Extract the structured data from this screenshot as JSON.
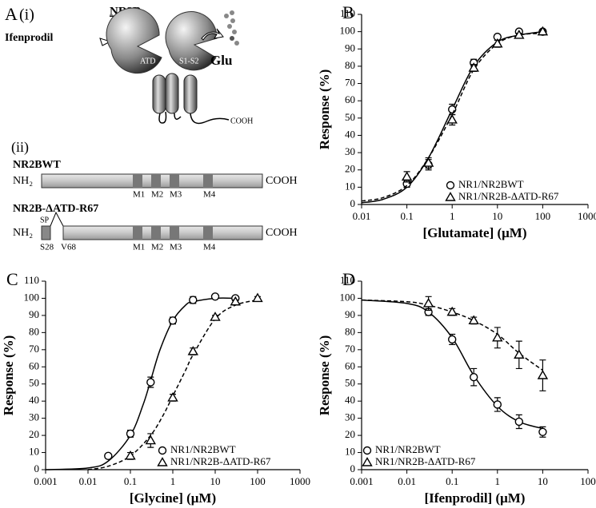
{
  "panel_a": {
    "label": "A",
    "sub_i": "(i)",
    "title": "NR2B",
    "ifenprodil": "Ifenprodil",
    "atd": "ATD",
    "s1s2": "S1-S2",
    "glu": "Glu",
    "cooh_cartoon": "COOH",
    "sub_ii": "(ii)",
    "wt_name": "NR2BWT",
    "nh2": "NH₂",
    "cooh": "COOH",
    "m1": "M1",
    "m2": "M2",
    "m3": "M3",
    "m4": "M4",
    "datd_name": "NR2B-ΔATD-R67",
    "sp": "SP",
    "s28": "S28",
    "v68": "V68"
  },
  "chart_data": [
    {
      "type": "scatter",
      "panel_label": "B",
      "x_label": "[Glutamate] (μM)",
      "y_label": "Response (%)",
      "xscale": "log",
      "xlim": [
        0.01,
        1000
      ],
      "xticks": [
        0.01,
        0.1,
        1,
        10,
        100,
        1000
      ],
      "ylim": [
        0,
        110
      ],
      "yticks": [
        0,
        10,
        20,
        30,
        40,
        50,
        60,
        70,
        80,
        90,
        100,
        110
      ],
      "legend": "lower right",
      "series": [
        {
          "name": "NR1/NR2BWT",
          "color": "#000000",
          "marker": "circle",
          "line": "solid",
          "x": [
            0.1,
            0.3,
            1,
            3,
            10,
            30,
            100
          ],
          "values": [
            12,
            23,
            55,
            82,
            97,
            100,
            100
          ],
          "errors": [
            2,
            3,
            3,
            2,
            1,
            1,
            1
          ],
          "fit": {
            "x": [
              0.01,
              0.03,
              0.1,
              0.3,
              1,
              3,
              10,
              30,
              100
            ],
            "values": [
              1,
              3,
              10,
              27,
              55,
              80,
              94,
              98,
              100
            ]
          }
        },
        {
          "name": "NR1/NR2B-ΔATD-R67",
          "color": "#000000",
          "marker": "triangle",
          "line": "dashed",
          "x": [
            0.1,
            0.3,
            1,
            3,
            10,
            30,
            100
          ],
          "values": [
            16,
            24,
            49,
            79,
            93,
            98,
            100
          ],
          "errors": [
            3,
            3,
            3,
            2,
            2,
            1,
            1
          ],
          "fit": {
            "x": [
              0.01,
              0.03,
              0.1,
              0.3,
              1,
              3,
              10,
              30,
              100
            ],
            "values": [
              2,
              4,
              11,
              27,
              52,
              78,
              93,
              98,
              99
            ]
          }
        }
      ]
    },
    {
      "type": "scatter",
      "panel_label": "C",
      "x_label": "[Glycine] (μM)",
      "y_label": "Response (%)",
      "xscale": "log",
      "xlim": [
        0.001,
        1000
      ],
      "xticks": [
        0.001,
        0.01,
        0.1,
        1,
        10,
        100,
        1000
      ],
      "ylim": [
        0,
        110
      ],
      "yticks": [
        0,
        10,
        20,
        30,
        40,
        50,
        60,
        70,
        80,
        90,
        100,
        110
      ],
      "legend": "lower right",
      "series": [
        {
          "name": "NR1/NR2BWT",
          "color": "#000000",
          "marker": "circle",
          "line": "solid",
          "x": [
            0.03,
            0.1,
            0.3,
            1,
            3,
            10,
            30
          ],
          "values": [
            8,
            21,
            51,
            87,
            99,
            101,
            100
          ],
          "errors": [
            1,
            2,
            3,
            2,
            2,
            1,
            1
          ],
          "fit": {
            "x": [
              0.001,
              0.01,
              0.03,
              0.1,
              0.2,
              0.3,
              0.5,
              1,
              2,
              3,
              10,
              30
            ],
            "values": [
              0,
              1,
              5,
              20,
              38,
              52,
              70,
              87,
              96,
              98,
              100,
              100
            ]
          }
        },
        {
          "name": "NR1/NR2B-ΔATD-R67",
          "color": "#000000",
          "marker": "triangle",
          "line": "dashed",
          "x": [
            0.1,
            0.3,
            1,
            3,
            10,
            30,
            100
          ],
          "values": [
            8,
            17,
            42,
            69,
            89,
            98,
            100
          ],
          "errors": [
            2,
            4,
            2,
            2,
            1,
            1,
            1
          ],
          "fit": {
            "x": [
              0.01,
              0.03,
              0.1,
              0.3,
              0.6,
              1,
              2,
              3,
              10,
              30,
              100
            ],
            "values": [
              0,
              2,
              8,
              20,
              32,
              43,
              58,
              67,
              88,
              96,
              99
            ]
          }
        }
      ]
    },
    {
      "type": "scatter",
      "panel_label": "D",
      "x_label": "[Ifenprodil] (μM)",
      "y_label": "Response (%)",
      "xscale": "log",
      "xlim": [
        0.001,
        100
      ],
      "xticks": [
        0.001,
        0.01,
        0.1,
        1,
        10,
        100
      ],
      "ylim": [
        0,
        110
      ],
      "yticks": [
        0,
        10,
        20,
        30,
        40,
        50,
        60,
        70,
        80,
        90,
        100,
        110
      ],
      "legend": "lower left",
      "series": [
        {
          "name": "NR1/NR2BWT",
          "color": "#000000",
          "marker": "circle",
          "line": "solid",
          "x": [
            0.03,
            0.1,
            0.3,
            1,
            3,
            10
          ],
          "values": [
            92,
            76,
            54,
            38,
            28,
            22
          ],
          "errors": [
            2,
            3,
            5,
            4,
            4,
            3
          ],
          "fit": {
            "x": [
              0.001,
              0.01,
              0.03,
              0.1,
              0.3,
              1,
              3,
              10
            ],
            "values": [
              99,
              97,
              92,
              77,
              55,
              37,
              28,
              24
            ]
          }
        },
        {
          "name": "NR1/NR2B-ΔATD-R67",
          "color": "#000000",
          "marker": "triangle",
          "line": "dashed",
          "x": [
            0.03,
            0.1,
            0.3,
            1,
            3,
            10
          ],
          "values": [
            97,
            92,
            87,
            77,
            67,
            55
          ],
          "errors": [
            4,
            2,
            2,
            6,
            8,
            9
          ],
          "fit": {
            "x": [
              0.001,
              0.01,
              0.03,
              0.1,
              0.3,
              1,
              3,
              10
            ],
            "values": [
              99,
              98,
              96,
              92,
              87,
              79,
              68,
              58
            ]
          }
        }
      ]
    }
  ]
}
